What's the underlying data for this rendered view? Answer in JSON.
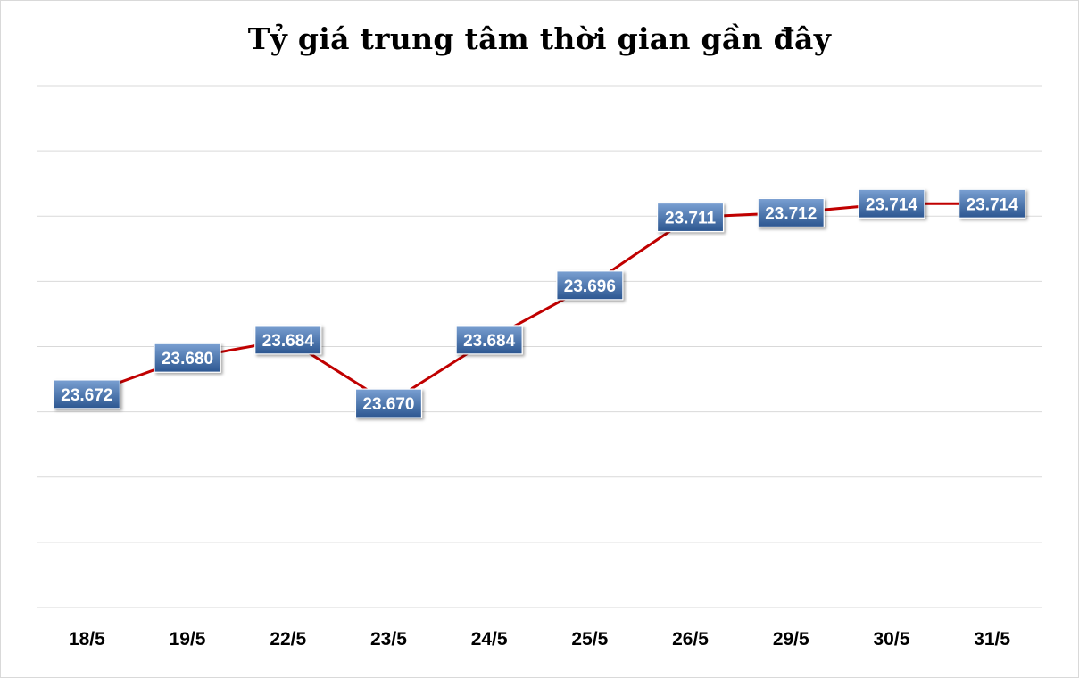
{
  "chart_data": {
    "type": "line",
    "title": "Tỷ giá trung tâm thời gian gần đây",
    "xlabel": "",
    "ylabel": "",
    "categories": [
      "18/5",
      "19/5",
      "22/5",
      "23/5",
      "24/5",
      "25/5",
      "26/5",
      "29/5",
      "30/5",
      "31/5"
    ],
    "values": [
      23672,
      23680,
      23684,
      23670,
      23684,
      23696,
      23711,
      23712,
      23714,
      23714
    ],
    "data_labels": [
      "23.672",
      "23.680",
      "23.684",
      "23.670",
      "23.684",
      "23.696",
      "23.711",
      "23.712",
      "23.714",
      "23.714"
    ],
    "ylim": [
      23625,
      23740
    ],
    "grid": true,
    "legend": "none",
    "colors": {
      "line": "#c00000",
      "label_bg_top": "#6e93c8",
      "label_bg_bottom": "#2f5a93",
      "grid": "#d9d9d9"
    }
  }
}
